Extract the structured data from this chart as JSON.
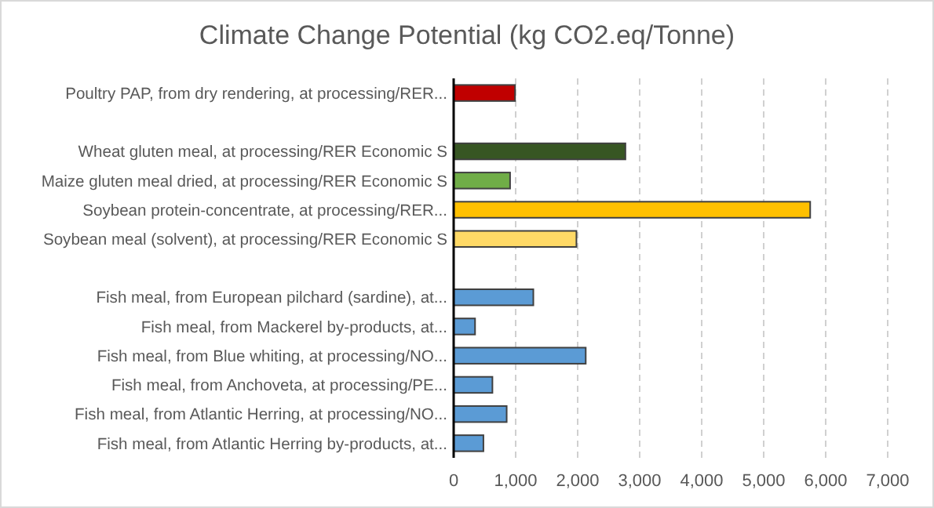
{
  "chart_data": {
    "type": "bar",
    "orientation": "horizontal",
    "title": "Climate Change Potential (kg CO2.eq/Tonne)",
    "categories": [
      "Poultry PAP, from dry rendering, at processing/RER...",
      null,
      "Wheat gluten meal, at processing/RER Economic S",
      "Maize gluten meal dried, at processing/RER Economic S",
      "Soybean protein-concentrate, at processing/RER...",
      "Soybean meal (solvent), at processing/RER Economic S",
      null,
      "Fish meal, from European pilchard (sardine), at...",
      "Fish meal, from Mackerel by-products, at...",
      "Fish meal, from Blue whiting, at processing/NO...",
      "Fish meal, from Anchoveta, at processing/PE...",
      "Fish meal, from Atlantic Herring, at processing/NO...",
      "Fish meal, from Atlantic Herring by-products, at..."
    ],
    "values": [
      990,
      null,
      2770,
      910,
      5750,
      1980,
      null,
      1285,
      345,
      2130,
      625,
      855,
      480
    ],
    "colors": [
      "#c00000",
      null,
      "#375623",
      "#70ad47",
      "#ffc000",
      "#ffd966",
      null,
      "#5b9bd5",
      "#5b9bd5",
      "#5b9bd5",
      "#5b9bd5",
      "#5b9bd5",
      "#5b9bd5"
    ],
    "xlim": [
      0,
      7000
    ],
    "xticks": [
      {
        "value": 0,
        "label": "0"
      },
      {
        "value": 1000,
        "label": "1,000"
      },
      {
        "value": 2000,
        "label": "2,000"
      },
      {
        "value": 3000,
        "label": "3,000"
      },
      {
        "value": 4000,
        "label": "4,000"
      },
      {
        "value": 5000,
        "label": "5,000"
      },
      {
        "value": 6000,
        "label": "6,000"
      },
      {
        "value": 7000,
        "label": "7,000"
      }
    ],
    "grid": "x"
  }
}
